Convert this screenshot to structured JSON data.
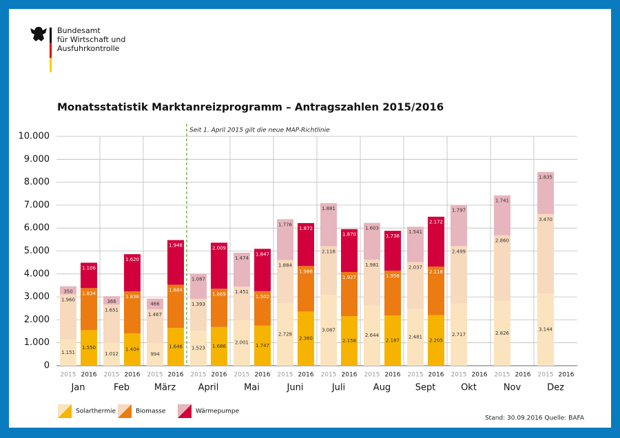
{
  "header": {
    "org_lines": [
      "Bundesamt",
      "für Wirtschaft und",
      "Ausfuhrkontrolle"
    ]
  },
  "chart_data": {
    "type": "grouped-stacked-bar",
    "title": "Monatsstatistik Marktanreizprogramm – Antragszahlen 2015/2016",
    "annotation": "Seit 1. April 2015 gilt die neue MAP-Richtlinie",
    "categories": [
      "Jan",
      "Feb",
      "März",
      "April",
      "Mai",
      "Juni",
      "Juli",
      "Aug",
      "Sept",
      "Okt",
      "Nov",
      "Dez"
    ],
    "groups": [
      "2015",
      "2016"
    ],
    "series": [
      {
        "name": "Solarthermie",
        "colors": [
          "#fbe3bd",
          "#f6b400"
        ],
        "values": [
          [
            1151,
            1012,
            994,
            1523,
            2001,
            2728,
            3087,
            2644,
            2481,
            2717,
            2826,
            3144
          ],
          [
            1550,
            1404,
            1646,
            1686,
            1747,
            2360,
            2158,
            2187,
            2205,
            null,
            null,
            null
          ]
        ],
        "value_labels": [
          [
            "1.151",
            "1.012",
            "994",
            "1.523",
            "2.001",
            "2.728",
            "3.087",
            "2.644",
            "2.481",
            "2.717",
            "2.826",
            "3.144"
          ],
          [
            "1.550",
            "1.404",
            "1.646",
            "1.686",
            "1.747",
            "2.360",
            "2.158",
            "2.187",
            "2.205",
            null,
            null,
            null
          ]
        ]
      },
      {
        "name": "Biomasse",
        "colors": [
          "#f7d9bd",
          "#ec7b12"
        ],
        "values": [
          [
            1960,
            1651,
            1467,
            1393,
            1451,
            1884,
            2118,
            1981,
            2037,
            2499,
            2860,
            3470
          ],
          [
            1834,
            1838,
            1884,
            1669,
            1502,
            1986,
            1927,
            1958,
            2118,
            null,
            null,
            null
          ]
        ],
        "value_labels": [
          [
            "1.960",
            "1.651",
            "1.467",
            "1.393",
            "1.451",
            "1.884",
            "2.118",
            "1.981",
            "2.037",
            "2.499",
            "2.860",
            "3.470"
          ],
          [
            "1.834",
            "1.838",
            "1.884",
            "1.669",
            "1.502",
            "1.986",
            "1.927",
            "1.958",
            "2.118",
            null,
            null,
            null
          ]
        ]
      },
      {
        "name": "Wärmepumpe",
        "colors": [
          "#e7b5bd",
          "#d2003c"
        ],
        "values": [
          [
            350,
            366,
            466,
            1087,
            1474,
            1776,
            1881,
            1603,
            1541,
            1797,
            1741,
            1835
          ],
          [
            1106,
            1620,
            1948,
            2009,
            1847,
            1872,
            1870,
            1738,
            2172,
            null,
            null,
            null
          ]
        ],
        "value_labels": [
          [
            "350",
            "366",
            "466",
            "1.087",
            "1.474",
            "1.776",
            "1.881",
            "1.603",
            "1.541",
            "1.797",
            "1.741",
            "1.835"
          ],
          [
            "1.106",
            "1.620",
            "1.948",
            "2.009",
            "1.847",
            "1.872",
            "1.870",
            "1.738",
            "2.172",
            null,
            null,
            null
          ]
        ]
      }
    ],
    "ylim": [
      0,
      10000
    ],
    "yticks": [
      0,
      {
        "value": 1000,
        "label": "1.000"
      },
      {
        "value": 2000,
        "label": "2.000"
      },
      {
        "value": 3000,
        "label": "3.000"
      },
      {
        "value": 4000,
        "label": "4.000"
      },
      {
        "value": 5000,
        "label": "5.000"
      },
      {
        "value": 6000,
        "label": "6.000"
      },
      {
        "value": 7000,
        "label": "7.000"
      },
      {
        "value": 8000,
        "label": "8.000"
      },
      {
        "value": 9000,
        "label": "9.000"
      },
      {
        "value": 10000,
        "label": "10.000"
      }
    ],
    "grid": true,
    "footer": "Stand: 30.09.2016  Quelle: BAFA"
  }
}
